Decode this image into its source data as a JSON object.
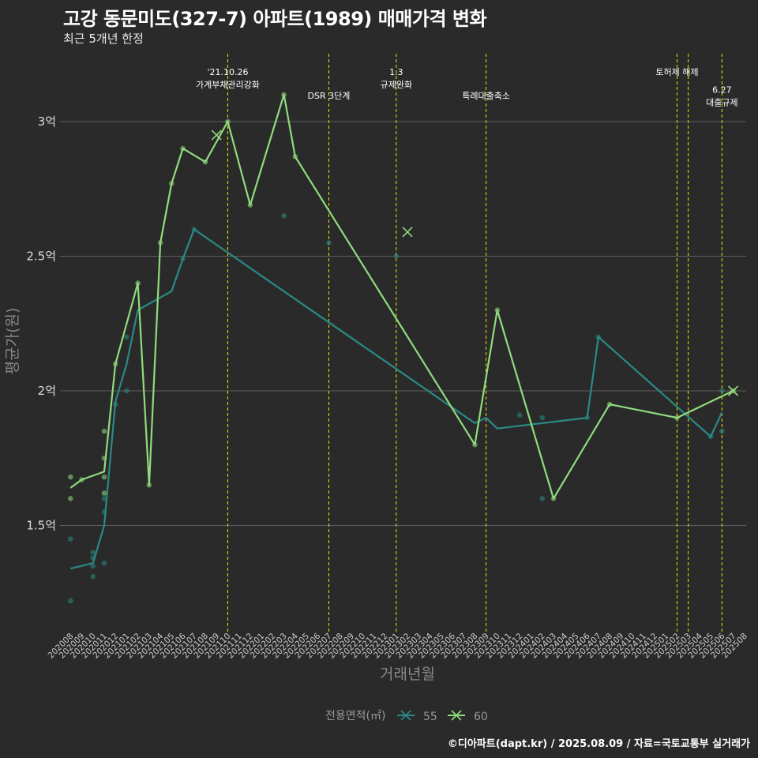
{
  "chart_data": {
    "type": "line",
    "title": "고강 동문미도(327-7) 아파트(1989) 매매가격 변화",
    "subtitle": "최근 5개년 한정",
    "xlabel": "거래년월",
    "ylabel": "평균가(원)",
    "caption": "©디아파트(dapt.kr) / 2025.08.09 / 자료=국토교통부 실거래가",
    "legend_title": "전용면적(㎡)",
    "legend_position": "bottom",
    "grid": true,
    "ylim": [
      1.1,
      3.2
    ],
    "y_ticks": [
      {
        "value": 1.5,
        "label": "1.5억"
      },
      {
        "value": 2.0,
        "label": "2억"
      },
      {
        "value": 2.5,
        "label": "2.5억"
      },
      {
        "value": 3.0,
        "label": "3억"
      }
    ],
    "x_categories": [
      "202008",
      "202009",
      "202010",
      "202011",
      "202012",
      "202101",
      "202102",
      "202103",
      "202104",
      "202105",
      "202106",
      "202107",
      "202108",
      "202109",
      "202110",
      "202111",
      "202112",
      "202201",
      "202202",
      "202203",
      "202204",
      "202205",
      "202206",
      "202207",
      "202208",
      "202209",
      "202210",
      "202211",
      "202212",
      "202301",
      "202302",
      "202303",
      "202304",
      "202305",
      "202306",
      "202307",
      "202308",
      "202309",
      "202310",
      "202311",
      "202312",
      "202401",
      "202402",
      "202403",
      "202404",
      "202405",
      "202406",
      "202407",
      "202408",
      "202409",
      "202410",
      "202411",
      "202412",
      "202501",
      "202502",
      "202503",
      "202504",
      "202505",
      "202506",
      "202507",
      "202508"
    ],
    "series": [
      {
        "name": "55",
        "color": "#2a8a85",
        "line": [
          [
            "202008",
            1.34
          ],
          [
            "202010",
            1.36
          ],
          [
            "202011",
            1.5
          ],
          [
            "202012",
            1.96
          ],
          [
            "202101",
            2.1
          ],
          [
            "202102",
            2.3
          ],
          [
            "202105",
            2.37
          ],
          [
            "202106",
            2.49
          ],
          [
            "202107",
            2.6
          ],
          [
            "202308",
            1.88
          ],
          [
            "202309",
            1.9
          ],
          [
            "202310",
            1.86
          ],
          [
            "202406",
            1.9
          ],
          [
            "202407",
            2.2
          ],
          [
            "202505",
            1.83
          ],
          [
            "202506",
            1.92
          ]
        ],
        "points": [
          [
            "202008",
            1.22
          ],
          [
            "202008",
            1.45
          ],
          [
            "202010",
            1.35
          ],
          [
            "202010",
            1.31
          ],
          [
            "202010",
            1.38
          ],
          [
            "202010",
            1.4
          ],
          [
            "202011",
            1.36
          ],
          [
            "202011",
            1.6
          ],
          [
            "202011",
            1.55
          ],
          [
            "202012",
            1.95
          ],
          [
            "202101",
            2.0
          ],
          [
            "202101",
            2.2
          ],
          [
            "202106",
            2.49
          ],
          [
            "202107",
            2.6
          ],
          [
            "202203",
            2.65
          ],
          [
            "202207",
            2.55
          ],
          [
            "202301",
            2.5
          ],
          [
            "202312",
            1.91
          ],
          [
            "202402",
            1.6
          ],
          [
            "202402",
            1.9
          ],
          [
            "202406",
            1.9
          ],
          [
            "202407",
            2.2
          ],
          [
            "202505",
            1.83
          ],
          [
            "202506",
            1.85
          ],
          [
            "202506",
            2.0
          ]
        ],
        "markers_x": []
      },
      {
        "name": "60",
        "color": "#8fdc7c",
        "line": [
          [
            "202008",
            1.64
          ],
          [
            "202009",
            1.67
          ],
          [
            "202011",
            1.7
          ],
          [
            "202012",
            2.1
          ],
          [
            "202102",
            2.4
          ],
          [
            "202103",
            1.65
          ],
          [
            "202104",
            2.55
          ],
          [
            "202105",
            2.77
          ],
          [
            "202106",
            2.9
          ],
          [
            "202108",
            2.85
          ],
          [
            "202110",
            3.0
          ],
          [
            "202112",
            2.69
          ],
          [
            "202203",
            3.1
          ],
          [
            "202204",
            2.87
          ],
          [
            "202308",
            1.8
          ],
          [
            "202310",
            2.3
          ],
          [
            "202403",
            1.6
          ],
          [
            "202408",
            1.95
          ],
          [
            "202502",
            1.9
          ],
          [
            "202507",
            2.0
          ]
        ],
        "points": [
          [
            "202008",
            1.68
          ],
          [
            "202008",
            1.6
          ],
          [
            "202009",
            1.67
          ],
          [
            "202011",
            1.85
          ],
          [
            "202011",
            1.75
          ],
          [
            "202011",
            1.68
          ],
          [
            "202011",
            1.62
          ],
          [
            "202012",
            2.1
          ],
          [
            "202102",
            2.4
          ],
          [
            "202103",
            1.65
          ],
          [
            "202104",
            2.55
          ],
          [
            "202105",
            2.77
          ],
          [
            "202106",
            2.9
          ],
          [
            "202108",
            2.85
          ],
          [
            "202110",
            3.0
          ],
          [
            "202112",
            2.69
          ],
          [
            "202203",
            3.1
          ],
          [
            "202204",
            2.87
          ],
          [
            "202308",
            1.8
          ],
          [
            "202310",
            2.3
          ],
          [
            "202403",
            1.6
          ],
          [
            "202408",
            1.95
          ],
          [
            "202502",
            1.9
          ],
          [
            "202507",
            2.0
          ]
        ],
        "markers_x": [
          [
            "202109",
            2.95
          ],
          [
            "202302",
            2.59
          ],
          [
            "202507",
            2.0
          ]
        ]
      }
    ],
    "events": [
      {
        "x": 14.0,
        "label": [
          "'21.10.26",
          "가계부채관리강화"
        ],
        "row": 0,
        "anchor": "middle"
      },
      {
        "x": 23.0,
        "label": [
          "DSR 3단계"
        ],
        "row": 1,
        "anchor": "middle"
      },
      {
        "x": 29.0,
        "label": [
          "1.3",
          "규제완화"
        ],
        "row": 0,
        "anchor": "middle"
      },
      {
        "x": 37.0,
        "label": [
          "특례대출축소"
        ],
        "row": 1,
        "anchor": "middle"
      },
      {
        "x": 54.0,
        "label": [
          "토허제 해제"
        ],
        "row": 0,
        "anchor": "middle"
      },
      {
        "x": 55.0,
        "label": [],
        "row": 0,
        "anchor": "middle"
      },
      {
        "x": 58.0,
        "label": [
          "6.27",
          "대출규제"
        ],
        "row": 0.75,
        "anchor": "middle"
      }
    ]
  }
}
